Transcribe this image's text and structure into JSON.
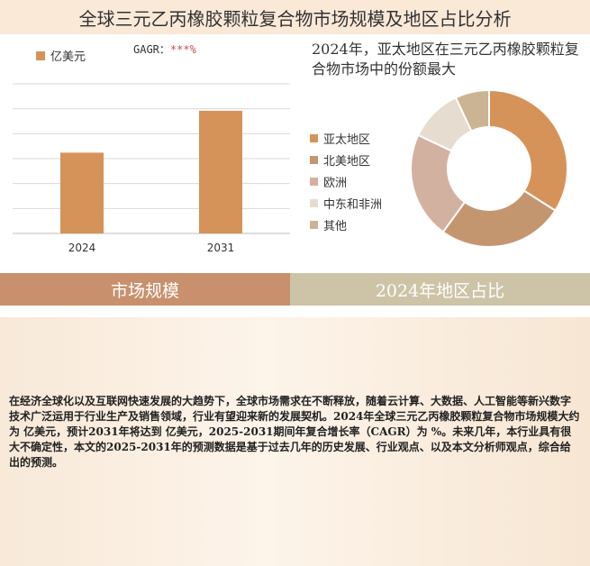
{
  "title": "全球三元乙丙橡胶颗粒复合物市场规模及地区占比分析",
  "colors": {
    "bar": "#d69359",
    "title_bg": "#fbe9d8",
    "band_left": "#c8906c",
    "band_right": "#cdc3a6"
  },
  "bar_chart": {
    "legend_label": "亿美元",
    "cagr_label": "GAGR：",
    "cagr_value": "***%"
  },
  "pie_panel": {
    "title": "2024年，亚太地区在三元乙丙橡胶颗粒复合物市场中的份额最大"
  },
  "bands": {
    "left": "市场规模",
    "right": "2024年地区占比"
  },
  "description": "在经济全球化以及互联网快速发展的大趋势下，全球市场需求在不断释放，随着云计算、大数据、人工智能等新兴数字技术广泛运用于行业生产及销售领域，行业有望迎来新的发展契机。2024年全球三元乙丙橡胶颗粒复合物市场规模大约为 亿美元，预计2031年将达到 亿美元，2025-2031期间年复合增长率（CAGR）为 %。未来几年，本行业具有很大不确定性，本文的2025-2031年的预测数据是基于过去几年的历史发展、行业观点、以及本文分析师观点，综合给出的预测。",
  "chart_data": [
    {
      "type": "bar",
      "categories": [
        "2024",
        "2031"
      ],
      "series": [
        {
          "name": "亿美元",
          "values": [
            54,
            82
          ]
        }
      ],
      "ylim": [
        0,
        100
      ],
      "grid": true,
      "legend": "top-left"
    },
    {
      "type": "pie",
      "donut": true,
      "labels": [
        "亚太地区",
        "北美地区",
        "欧洲",
        "中东和非洲",
        "其他"
      ],
      "values": [
        34,
        26,
        22,
        11,
        7
      ],
      "colors": [
        "#d69359",
        "#c49670",
        "#d3b1a1",
        "#e6ddd0",
        "#cbb494"
      ],
      "legend": "left"
    }
  ]
}
